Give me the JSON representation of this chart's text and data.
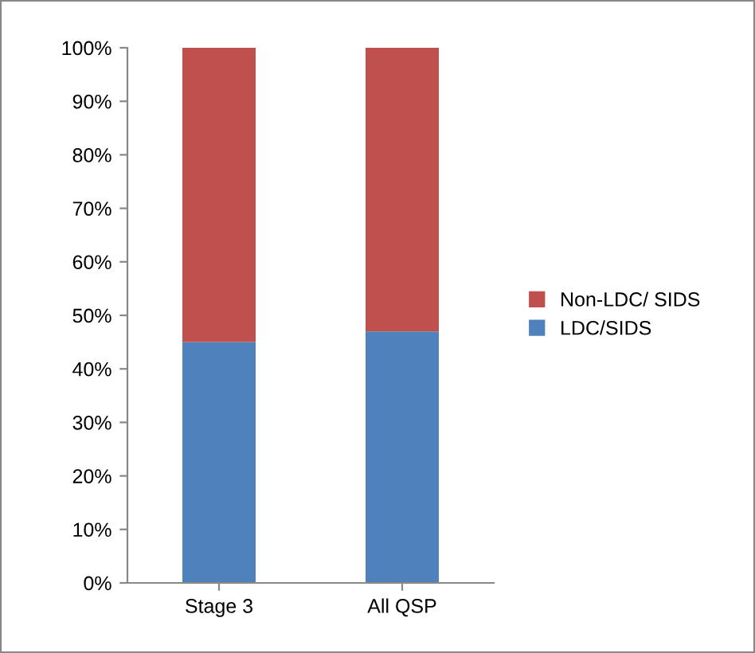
{
  "chart_data": {
    "type": "bar",
    "stacked": true,
    "categories": [
      "Stage 3",
      "All QSP"
    ],
    "series": [
      {
        "name": "LDC/SIDS",
        "color": "#4f81bd",
        "values": [
          45,
          47
        ]
      },
      {
        "name": "Non-LDC/ SIDS",
        "color": "#c0504d",
        "values": [
          55,
          53
        ]
      }
    ],
    "ylim": [
      0,
      100
    ],
    "yticks": [
      {
        "value": 0,
        "label": "0%"
      },
      {
        "value": 10,
        "label": "10%"
      },
      {
        "value": 20,
        "label": "20%"
      },
      {
        "value": 30,
        "label": "30%"
      },
      {
        "value": 40,
        "label": "40%"
      },
      {
        "value": 50,
        "label": "50%"
      },
      {
        "value": 60,
        "label": "60%"
      },
      {
        "value": 70,
        "label": "70%"
      },
      {
        "value": 80,
        "label": "80%"
      },
      {
        "value": 90,
        "label": "90%"
      },
      {
        "value": 100,
        "label": "100%"
      }
    ],
    "grid": false,
    "legend": "right"
  }
}
